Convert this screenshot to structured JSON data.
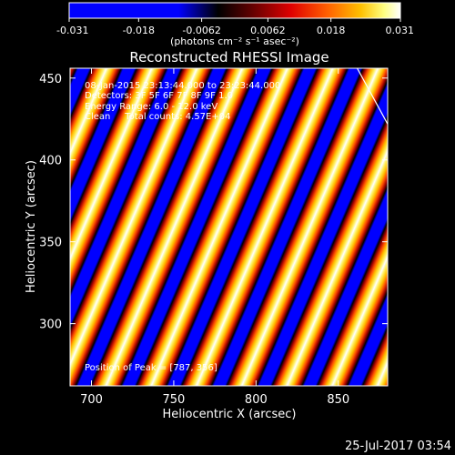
{
  "colorbar": {
    "ticks": [
      "-0.031",
      "-0.018",
      "-0.0062",
      "0.0062",
      "0.018",
      "0.031"
    ],
    "tick_values": [
      -0.031,
      -0.018,
      -0.0062,
      0.0062,
      0.018,
      0.031
    ],
    "range": [
      -0.031,
      0.031
    ],
    "unit_label": "(photons cm⁻² s⁻¹ asec⁻²)"
  },
  "footer": {
    "timestamp": "25-Jul-2017 03:54"
  },
  "chart_data": {
    "type": "heatmap",
    "title": "Reconstructed RHESSI Image",
    "xlabel": "Heliocentric X (arcsec)",
    "ylabel": "Heliocentric Y (arcsec)",
    "xlim": [
      687,
      880
    ],
    "ylim": [
      262,
      456
    ],
    "xticks": [
      700,
      750,
      800,
      850
    ],
    "yticks": [
      300,
      350,
      400,
      450
    ],
    "grid": false,
    "colormap": "blue-black-red-yellow-white",
    "colors": [
      "#0000ff",
      "#000000",
      "#8b0000",
      "#ff2000",
      "#ff8c00",
      "#ffe000",
      "#ffffff"
    ],
    "pattern": {
      "kind": "diagonal stripes",
      "period_x_arcsec": 50,
      "bands_per_period": [
        "white",
        "yellow",
        "orange",
        "red",
        "black",
        "blue",
        "blue",
        "black",
        "red",
        "orange"
      ]
    },
    "annotations": [
      "08-Jan-2015 23:13:44.000 to 23:23:44.000",
      "Detectors: 3F 5F 6F 7F 8F 9F 1.0",
      "Energy Range: 6.0 - 12.0 keV",
      "Clean     Total counts: 4.57E+04",
      "Position of Peak = [787, 356]"
    ]
  }
}
